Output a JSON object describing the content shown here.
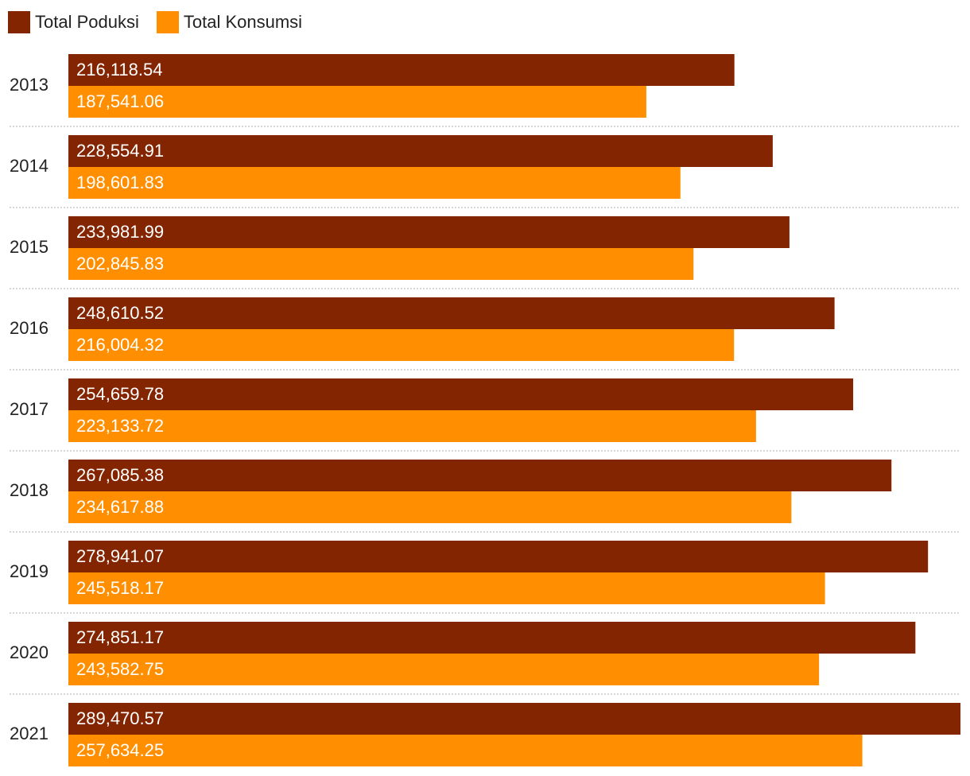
{
  "legend": {
    "items": [
      {
        "label": "Total Poduksi",
        "color": "#832500"
      },
      {
        "label": "Total Konsumsi",
        "color": "#FF8F00"
      }
    ]
  },
  "chart_data": {
    "type": "bar",
    "orientation": "horizontal",
    "categories": [
      "2013",
      "2014",
      "2015",
      "2016",
      "2017",
      "2018",
      "2019",
      "2020",
      "2021"
    ],
    "series": [
      {
        "name": "Total Poduksi",
        "color": "#832500",
        "values": [
          216118.54,
          228554.91,
          233981.99,
          248610.52,
          254659.78,
          267085.38,
          278941.07,
          274851.17,
          289470.57
        ],
        "labels": [
          "216,118.54",
          "228,554.91",
          "233,981.99",
          "248,610.52",
          "254,659.78",
          "267,085.38",
          "278,941.07",
          "274,851.17",
          "289,470.57"
        ]
      },
      {
        "name": "Total Konsumsi",
        "color": "#FF8F00",
        "values": [
          187541.06,
          198601.83,
          202845.83,
          216004.32,
          223133.72,
          234617.88,
          245518.17,
          243582.75,
          257634.25
        ],
        "labels": [
          "187,541.06",
          "198,601.83",
          "202,845.83",
          "216,004.32",
          "223,133.72",
          "234,617.88",
          "245,518.17",
          "243,582.75",
          "257,634.25"
        ]
      }
    ],
    "xlim": [
      0,
      289470.57
    ],
    "grid": false,
    "legend_position": "top-left",
    "data_labels": "inside-start"
  }
}
